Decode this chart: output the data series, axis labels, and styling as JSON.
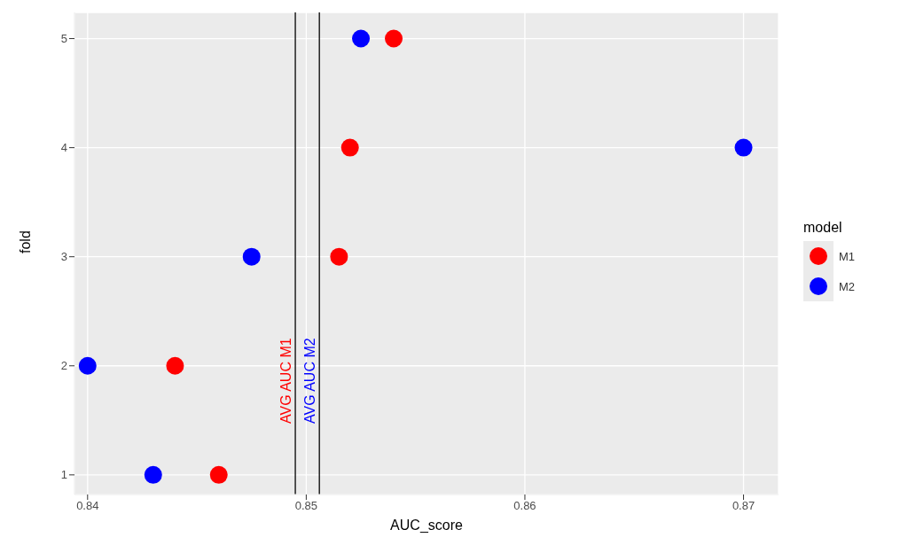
{
  "chart_data": {
    "type": "scatter",
    "xlabel": "AUC_score",
    "ylabel": "fold",
    "legend_title": "model",
    "series": [
      {
        "name": "M1",
        "color": "#ff0000",
        "x": [
          0.846,
          0.844,
          0.8515,
          0.852,
          0.854
        ],
        "values": [
          1,
          2,
          3,
          4,
          5
        ]
      },
      {
        "name": "M2",
        "color": "#0000ff",
        "x": [
          0.843,
          0.84,
          0.8475,
          0.87,
          0.8525
        ],
        "values": [
          1,
          2,
          3,
          4,
          5
        ]
      }
    ],
    "ref_lines": [
      {
        "axis": "x",
        "value": 0.8495,
        "label": "AVG AUC M1",
        "color": "#000000"
      },
      {
        "axis": "x",
        "value": 0.8506,
        "label": "AVG AUC M2",
        "color": "#000000"
      }
    ],
    "xlim": [
      0.8394,
      0.8716
    ],
    "xticks": [
      0.84,
      0.85,
      0.86,
      0.87
    ],
    "ylim": [
      0.82,
      5.24
    ],
    "yticks": [
      1,
      2,
      3,
      4,
      5
    ],
    "grid": true,
    "legend": "right",
    "marker": "circle"
  }
}
